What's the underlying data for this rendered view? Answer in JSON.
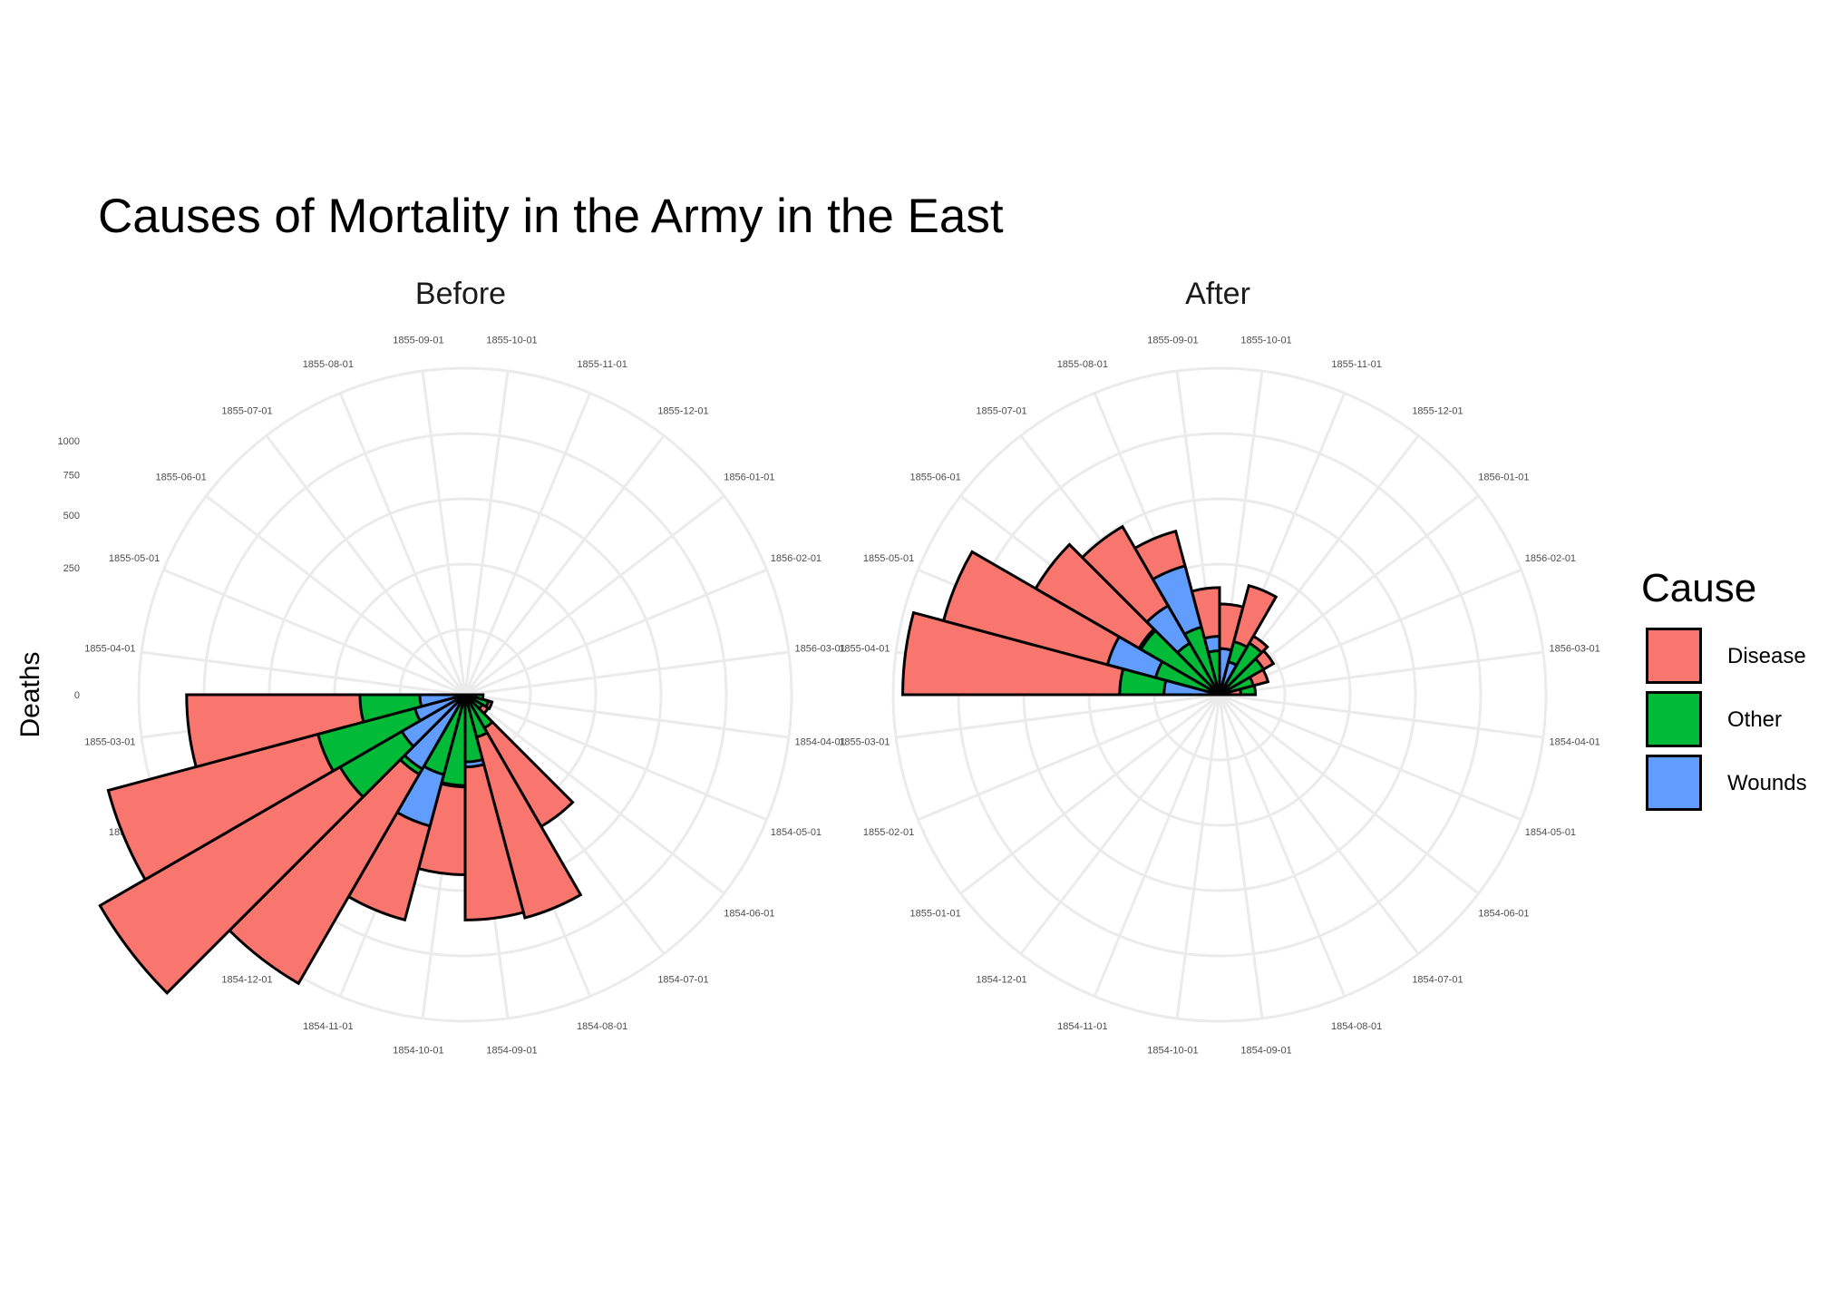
{
  "chart_data": {
    "type": "polar-area",
    "title": "Causes of Mortality in the Army in the East",
    "ylabel": "Deaths",
    "scale": "sqrt",
    "radial_ticks": [
      0,
      250,
      500,
      750,
      1000
    ],
    "angle_labels": [
      "1854-04-01",
      "1854-05-01",
      "1854-06-01",
      "1854-07-01",
      "1854-08-01",
      "1854-09-01",
      "1854-10-01",
      "1854-11-01",
      "1854-12-01",
      "1855-01-01",
      "1855-02-01",
      "1855-03-01",
      "1855-04-01",
      "1855-05-01",
      "1855-06-01",
      "1855-07-01",
      "1855-08-01",
      "1855-09-01",
      "1855-10-01",
      "1855-11-01",
      "1855-12-01",
      "1856-01-01",
      "1856-02-01",
      "1856-03-01"
    ],
    "legend": {
      "title": "Cause",
      "position": "right",
      "entries": [
        {
          "name": "Disease",
          "color": "#F8766D"
        },
        {
          "name": "Other",
          "color": "#00BA38"
        },
        {
          "name": "Wounds",
          "color": "#619CFF"
        }
      ]
    },
    "panels": [
      {
        "name": "Before",
        "months": [
          "1854-04-01",
          "1854-05-01",
          "1854-06-01",
          "1854-07-01",
          "1854-08-01",
          "1854-09-01",
          "1854-10-01",
          "1854-11-01",
          "1854-12-01",
          "1855-01-01",
          "1855-02-01",
          "1855-03-01"
        ],
        "series": [
          {
            "name": "Disease",
            "values": [
              1,
              12,
              11,
              359,
              828,
              788,
              503,
              844,
              1725,
              2761,
              2120,
              1205
            ]
          },
          {
            "name": "Other",
            "values": [
              5,
              9,
              6,
              23,
              30,
              70,
              128,
              106,
              131,
              324,
              361,
              172
            ]
          },
          {
            "name": "Wounds",
            "values": [
              0,
              0,
              0,
              0,
              1,
              81,
              132,
              287,
              114,
              83,
              42,
              32
            ]
          }
        ]
      },
      {
        "name": "After",
        "months": [
          "1855-04-01",
          "1855-05-01",
          "1855-06-01",
          "1855-07-01",
          "1855-08-01",
          "1855-09-01",
          "1855-10-01",
          "1855-11-01",
          "1855-12-01",
          "1856-01-01",
          "1856-02-01",
          "1856-03-01"
        ],
        "series": [
          {
            "name": "Disease",
            "values": [
              1559,
              1268,
              700,
              585,
              445,
              178,
              128,
              198,
              71,
              60,
              39,
              7
            ]
          },
          {
            "name": "Other",
            "values": [
              155,
              68,
              128,
              55,
              76,
              30,
              33,
              47,
              55,
              40,
              19,
              20
            ]
          },
          {
            "name": "Wounds",
            "values": [
              48,
              209,
              134,
              164,
              276,
              53,
              33,
              18,
              2,
              1,
              0,
              0
            ]
          }
        ]
      }
    ]
  }
}
